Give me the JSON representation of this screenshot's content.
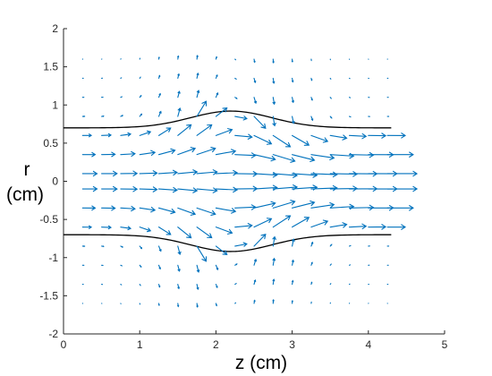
{
  "chart_data": {
    "type": "quiver",
    "xlabel": "z (cm)",
    "ylabel": [
      "r",
      "(cm)"
    ],
    "xlim": [
      0,
      5
    ],
    "ylim": [
      -2,
      2
    ],
    "x_ticks": [
      "0",
      "1",
      "2",
      "3",
      "4",
      "5"
    ],
    "y_ticks": [
      "-2",
      "-1.5",
      "-1",
      "-0.5",
      "0",
      "0.5",
      "1",
      "1.5",
      "2"
    ],
    "grid": false,
    "colors": {
      "arrows": "#0072bd",
      "wall": "#000000",
      "axes": "#262626"
    },
    "wall_profile": {
      "z_start": 0,
      "z_end": 4.3,
      "base_radius": 0.7,
      "bump_amplitude": 0.22,
      "bump_center": 2.2,
      "bump_width": 0.75
    },
    "vector_field": {
      "z_values": [
        0.25,
        0.5,
        0.75,
        1.0,
        1.25,
        1.5,
        1.75,
        2.0,
        2.25,
        2.5,
        2.75,
        3.0,
        3.25,
        3.5,
        3.75,
        4.0,
        4.25
      ],
      "r_values": [
        1.6,
        1.35,
        1.1,
        0.85,
        0.6,
        0.35,
        0.1,
        -0.1,
        -0.35,
        -0.6,
        -0.85,
        -1.1,
        -1.35,
        -1.6
      ],
      "description": "flow through pipe with wall bump; axial velocity grows downstream near axis"
    }
  }
}
